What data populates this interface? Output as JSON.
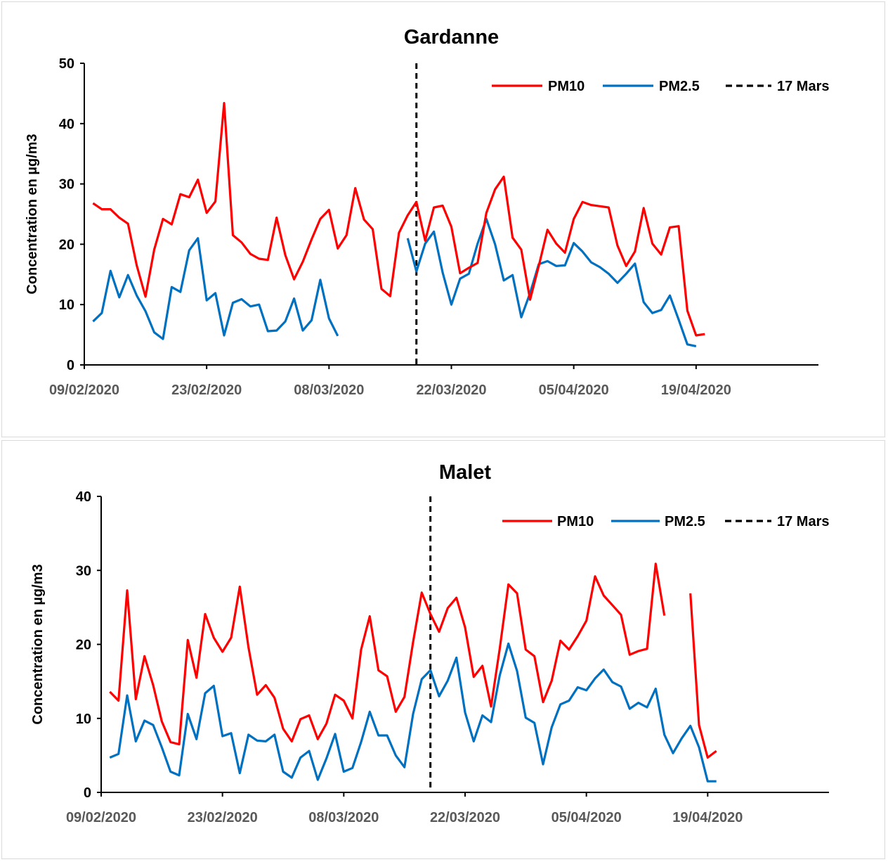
{
  "chart_data": [
    {
      "type": "line",
      "title": "Gardanne",
      "ylabel": "Concentration en µg/m3",
      "xlabel": "",
      "ylim": [
        0,
        50
      ],
      "yticks": [
        0,
        10,
        20,
        30,
        40,
        50
      ],
      "xlim": [
        "09/02/2020",
        "03/05/2020"
      ],
      "xticks": [
        "09/02/2020",
        "23/02/2020",
        "08/03/2020",
        "22/03/2020",
        "05/04/2020",
        "19/04/2020"
      ],
      "x_start": "10/02/2020",
      "x_step_days": 1,
      "legend_position": "top-right",
      "vline": {
        "x": "18/03/2020",
        "label": "17 Mars",
        "color": "#000000"
      },
      "series": [
        {
          "name": "PM10",
          "color": "#ff0000",
          "values": [
            26.8,
            25.8,
            25.8,
            24.4,
            23.4,
            16.5,
            11.3,
            19.1,
            24.2,
            23.3,
            28.3,
            27.8,
            30.7,
            25.2,
            27.1,
            43.4,
            21.5,
            20.3,
            18.4,
            17.6,
            17.4,
            24.4,
            18.2,
            14.2,
            17.1,
            20.8,
            24.2,
            25.7,
            19.3,
            21.5,
            29.3,
            24.1,
            22.5,
            12.6,
            11.4,
            21.9,
            24.8,
            27.0,
            20.6,
            26.1,
            26.4,
            22.9,
            15.2,
            16.1,
            16.9,
            25.2,
            29.1,
            31.2,
            21.1,
            19.1,
            10.8,
            16.4,
            22.4,
            20.1,
            18.6,
            24.2,
            27.0,
            26.5,
            26.3,
            26.1,
            19.8,
            16.4,
            18.8,
            26.0,
            20.1,
            18.3,
            22.8,
            23.0,
            9.0,
            4.9,
            5.1
          ]
        },
        {
          "name": "PM2.5",
          "color": "#0070c0",
          "values": [
            7.2,
            8.6,
            15.6,
            11.2,
            14.9,
            11.5,
            8.9,
            5.4,
            4.3,
            12.9,
            12.1,
            19.0,
            21.0,
            10.7,
            11.9,
            4.9,
            10.3,
            10.9,
            9.7,
            10.0,
            5.6,
            5.7,
            7.2,
            11.0,
            5.7,
            7.4,
            14.1,
            7.7,
            4.8,
            null,
            null,
            null,
            null,
            null,
            null,
            null,
            21.0,
            15.5,
            20.1,
            22.1,
            15.3,
            10.0,
            14.3,
            15.1,
            20.1,
            24.2,
            20.0,
            14.0,
            14.9,
            7.9,
            11.9,
            16.7,
            17.2,
            16.4,
            16.5,
            20.2,
            18.8,
            17.0,
            16.2,
            15.1,
            13.6,
            15.1,
            16.8,
            10.4,
            8.6,
            9.1,
            11.5,
            7.5,
            3.4,
            3.1
          ]
        }
      ]
    },
    {
      "type": "line",
      "title": "Malet",
      "ylabel": "Concentration en µg/m3",
      "xlabel": "",
      "ylim": [
        0,
        40
      ],
      "yticks": [
        0,
        10,
        20,
        30,
        40
      ],
      "xlim": [
        "09/02/2020",
        "03/05/2020"
      ],
      "xticks": [
        "09/02/2020",
        "23/02/2020",
        "08/03/2020",
        "22/03/2020",
        "05/04/2020",
        "19/04/2020"
      ],
      "x_start": "10/02/2020",
      "x_step_days": 1,
      "legend_position": "top-right",
      "vline": {
        "x": "18/03/2020",
        "label": "17 Mars",
        "color": "#000000"
      },
      "series": [
        {
          "name": "PM10",
          "color": "#ff0000",
          "values": [
            13.6,
            12.4,
            27.3,
            12.6,
            18.4,
            14.5,
            9.6,
            6.8,
            6.5,
            20.6,
            15.5,
            24.1,
            20.9,
            19.0,
            20.9,
            27.8,
            19.6,
            13.2,
            14.5,
            12.8,
            8.6,
            6.9,
            9.9,
            10.4,
            7.2,
            9.3,
            13.2,
            12.4,
            10.0,
            19.3,
            23.8,
            16.5,
            15.7,
            10.9,
            12.9,
            20.3,
            27.0,
            24.1,
            21.7,
            24.9,
            26.3,
            22.3,
            15.6,
            17.1,
            11.6,
            19.4,
            28.1,
            26.9,
            19.3,
            18.4,
            12.2,
            15.1,
            20.5,
            19.3,
            21.1,
            23.2,
            29.2,
            26.6,
            25.3,
            24.0,
            18.6,
            19.1,
            19.4,
            30.9,
            23.9,
            null,
            null,
            26.9,
            9.1,
            4.7,
            5.6
          ]
        },
        {
          "name": "PM2.5",
          "color": "#0070c0",
          "values": [
            4.7,
            5.2,
            13.1,
            6.9,
            9.7,
            9.1,
            6.1,
            2.8,
            2.3,
            10.6,
            7.2,
            13.4,
            14.4,
            7.6,
            8.0,
            2.6,
            7.8,
            7.0,
            6.9,
            7.8,
            2.8,
            2.0,
            4.7,
            5.6,
            1.7,
            4.6,
            7.9,
            2.8,
            3.3,
            6.8,
            10.9,
            7.7,
            7.7,
            5.0,
            3.4,
            10.6,
            15.3,
            16.5,
            13.0,
            15.1,
            18.2,
            10.8,
            6.9,
            10.4,
            9.5,
            15.8,
            20.1,
            16.4,
            10.1,
            9.4,
            3.8,
            8.8,
            11.9,
            12.4,
            14.2,
            13.8,
            15.4,
            16.6,
            14.9,
            14.3,
            11.3,
            12.1,
            11.5,
            14.0,
            7.8,
            5.3,
            7.3,
            9.0,
            6.1,
            1.5,
            1.5
          ]
        }
      ]
    }
  ]
}
